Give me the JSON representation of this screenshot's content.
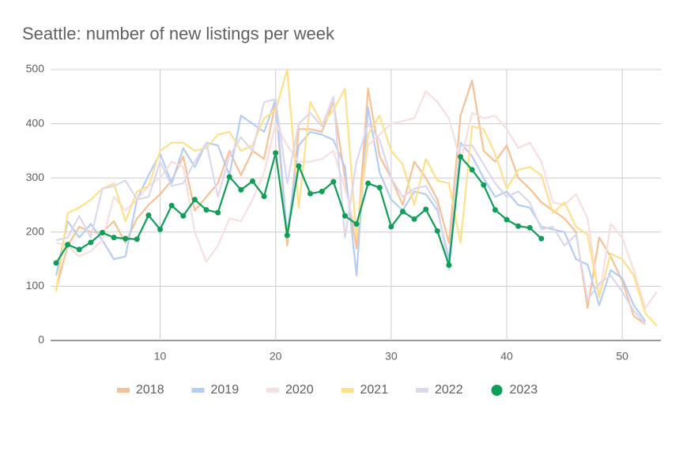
{
  "chart_data": {
    "type": "line",
    "title": "Seattle: number of new listings per week",
    "x": [
      1,
      2,
      3,
      4,
      5,
      6,
      7,
      8,
      9,
      10,
      11,
      12,
      13,
      14,
      15,
      16,
      17,
      18,
      19,
      20,
      21,
      22,
      23,
      24,
      25,
      26,
      27,
      28,
      29,
      30,
      31,
      32,
      33,
      34,
      35,
      36,
      37,
      38,
      39,
      40,
      41,
      42,
      43,
      44,
      45,
      46,
      47,
      48,
      49,
      50,
      51,
      52,
      53
    ],
    "xlim": [
      1,
      53
    ],
    "xticks": [
      10,
      20,
      30,
      40,
      50
    ],
    "ylim": [
      0,
      500
    ],
    "yticks": [
      0,
      100,
      200,
      300,
      400,
      500
    ],
    "grid": true,
    "legend": "bottom",
    "series": [
      {
        "name": "2018",
        "color": "#f8c195",
        "values": [
          95,
          175,
          210,
          200,
          200,
          220,
          180,
          225,
          250,
          270,
          295,
          340,
          240,
          265,
          290,
          350,
          305,
          350,
          335,
          440,
          175,
          390,
          390,
          385,
          440,
          300,
          170,
          465,
          340,
          300,
          250,
          330,
          300,
          260,
          180,
          415,
          480,
          350,
          330,
          360,
          300,
          280,
          255,
          240,
          225,
          200,
          60,
          190,
          155,
          110,
          45,
          30,
          null
        ]
      },
      {
        "name": "2019",
        "color": "#b4cdf6",
        "values": [
          120,
          220,
          190,
          215,
          185,
          150,
          155,
          260,
          305,
          345,
          290,
          355,
          320,
          365,
          360,
          305,
          415,
          400,
          385,
          445,
          195,
          360,
          385,
          380,
          370,
          320,
          120,
          430,
          310,
          260,
          240,
          275,
          270,
          240,
          150,
          365,
          340,
          300,
          265,
          275,
          250,
          245,
          210,
          205,
          200,
          150,
          140,
          65,
          130,
          115,
          65,
          35,
          null
        ]
      },
      {
        "name": "2020",
        "color": "#f8dede",
        "values": [
          180,
          175,
          155,
          165,
          185,
          265,
          240,
          260,
          285,
          300,
          330,
          320,
          200,
          145,
          175,
          225,
          220,
          260,
          310,
          400,
          360,
          330,
          330,
          335,
          350,
          280,
          200,
          360,
          380,
          400,
          405,
          410,
          460,
          440,
          410,
          330,
          420,
          410,
          415,
          390,
          355,
          365,
          330,
          255,
          250,
          270,
          225,
          80,
          215,
          190,
          130,
          60,
          90
        ]
      },
      {
        "name": "2021",
        "color": "#ffe08a",
        "values": [
          90,
          235,
          245,
          260,
          280,
          290,
          220,
          275,
          285,
          350,
          365,
          365,
          350,
          355,
          380,
          385,
          350,
          360,
          410,
          425,
          500,
          245,
          440,
          400,
          425,
          465,
          190,
          380,
          415,
          350,
          325,
          250,
          335,
          295,
          290,
          180,
          395,
          390,
          345,
          280,
          315,
          320,
          305,
          235,
          255,
          210,
          195,
          80,
          160,
          150,
          120,
          50,
          27
        ]
      },
      {
        "name": "2022",
        "color": "#dcd7ec",
        "values": [
          185,
          190,
          230,
          190,
          280,
          285,
          295,
          260,
          265,
          330,
          285,
          290,
          330,
          365,
          265,
          340,
          375,
          350,
          440,
          445,
          290,
          400,
          420,
          395,
          450,
          190,
          330,
          400,
          370,
          300,
          265,
          280,
          285,
          250,
          130,
          360,
          360,
          325,
          290,
          265,
          275,
          255,
          205,
          210,
          175,
          195,
          75,
          105,
          120,
          90,
          55,
          30,
          null
        ]
      },
      {
        "name": "2023",
        "color": "#0f9d58",
        "marker": true,
        "values": [
          143,
          177,
          168,
          181,
          199,
          190,
          188,
          187,
          231,
          205,
          249,
          230,
          260,
          241,
          236,
          302,
          278,
          294,
          266,
          346,
          194,
          322,
          271,
          275,
          293,
          230,
          215,
          290,
          282,
          210,
          238,
          224,
          242,
          202,
          139,
          339,
          315,
          287,
          241,
          223,
          211,
          208,
          188,
          null,
          null,
          null,
          null,
          null,
          null,
          null,
          null,
          null,
          null
        ]
      }
    ]
  }
}
